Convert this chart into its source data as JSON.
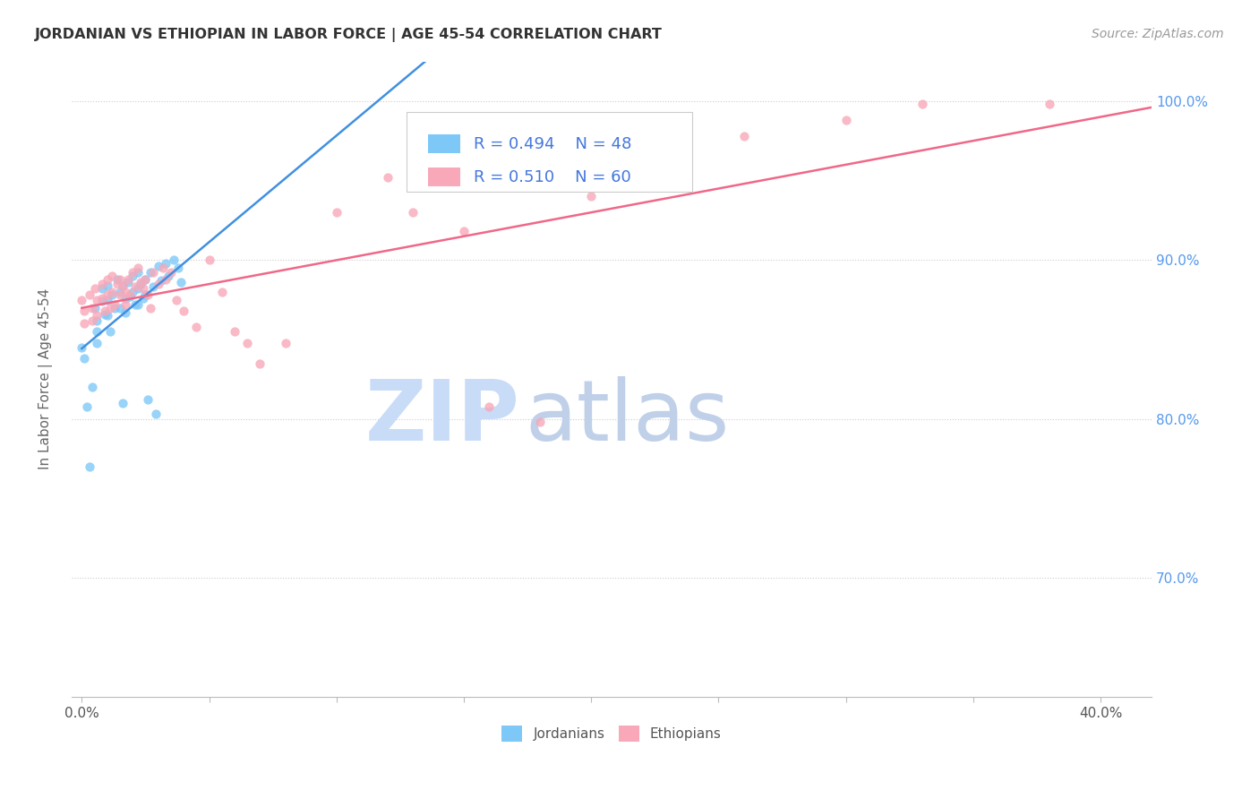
{
  "title": "JORDANIAN VS ETHIOPIAN IN LABOR FORCE | AGE 45-54 CORRELATION CHART",
  "source_text": "Source: ZipAtlas.com",
  "ylabel": "In Labor Force | Age 45-54",
  "ylim": [
    0.625,
    1.025
  ],
  "xlim": [
    -0.004,
    0.42
  ],
  "legend_r1": "R = 0.494",
  "legend_n1": "N = 48",
  "legend_r2": "R = 0.510",
  "legend_n2": "N = 60",
  "color_jordanian": "#7EC8F8",
  "color_ethiopian": "#F8A8B8",
  "color_line_jordanian": "#4090E0",
  "color_line_ethiopian": "#F06888",
  "color_legend_text": "#4477DD",
  "color_ytick": "#5599EE",
  "watermark_zip_color": "#C8DCF8",
  "watermark_atlas_color": "#C0D0E8",
  "scatter_jordanian_x": [
    0.0,
    0.001,
    0.005,
    0.006,
    0.006,
    0.006,
    0.008,
    0.008,
    0.009,
    0.01,
    0.01,
    0.01,
    0.011,
    0.012,
    0.013,
    0.014,
    0.015,
    0.015,
    0.016,
    0.017,
    0.017,
    0.018,
    0.019,
    0.02,
    0.02,
    0.021,
    0.022,
    0.022,
    0.022,
    0.023,
    0.024,
    0.025,
    0.025,
    0.027,
    0.028,
    0.03,
    0.031,
    0.033,
    0.034,
    0.036,
    0.038,
    0.039,
    0.002,
    0.003,
    0.004,
    0.016,
    0.026,
    0.029
  ],
  "scatter_jordanian_y": [
    0.845,
    0.838,
    0.87,
    0.862,
    0.855,
    0.848,
    0.882,
    0.874,
    0.866,
    0.884,
    0.875,
    0.865,
    0.855,
    0.878,
    0.87,
    0.888,
    0.88,
    0.87,
    0.884,
    0.876,
    0.867,
    0.886,
    0.877,
    0.89,
    0.88,
    0.872,
    0.892,
    0.882,
    0.872,
    0.885,
    0.876,
    0.888,
    0.878,
    0.892,
    0.883,
    0.896,
    0.887,
    0.898,
    0.89,
    0.9,
    0.895,
    0.886,
    0.808,
    0.77,
    0.82,
    0.81,
    0.812,
    0.803
  ],
  "scatter_ethiopian_x": [
    0.0,
    0.001,
    0.001,
    0.003,
    0.004,
    0.004,
    0.005,
    0.006,
    0.006,
    0.008,
    0.008,
    0.009,
    0.01,
    0.01,
    0.011,
    0.012,
    0.012,
    0.013,
    0.014,
    0.015,
    0.015,
    0.016,
    0.017,
    0.017,
    0.018,
    0.019,
    0.02,
    0.021,
    0.022,
    0.023,
    0.024,
    0.025,
    0.026,
    0.027,
    0.028,
    0.03,
    0.032,
    0.033,
    0.035,
    0.037,
    0.04,
    0.045,
    0.05,
    0.055,
    0.06,
    0.065,
    0.07,
    0.08,
    0.1,
    0.12,
    0.13,
    0.15,
    0.16,
    0.18,
    0.2,
    0.22,
    0.26,
    0.3,
    0.33,
    0.38
  ],
  "scatter_ethiopian_y": [
    0.875,
    0.868,
    0.86,
    0.878,
    0.87,
    0.862,
    0.882,
    0.875,
    0.865,
    0.885,
    0.876,
    0.868,
    0.888,
    0.878,
    0.87,
    0.89,
    0.88,
    0.872,
    0.885,
    0.888,
    0.878,
    0.884,
    0.88,
    0.872,
    0.888,
    0.878,
    0.892,
    0.883,
    0.895,
    0.886,
    0.882,
    0.888,
    0.878,
    0.87,
    0.892,
    0.885,
    0.895,
    0.888,
    0.892,
    0.875,
    0.868,
    0.858,
    0.9,
    0.88,
    0.855,
    0.848,
    0.835,
    0.848,
    0.93,
    0.952,
    0.93,
    0.918,
    0.808,
    0.798,
    0.94,
    0.958,
    0.978,
    0.988,
    0.998,
    0.998
  ],
  "figsize": [
    14.06,
    8.92
  ],
  "dpi": 100
}
